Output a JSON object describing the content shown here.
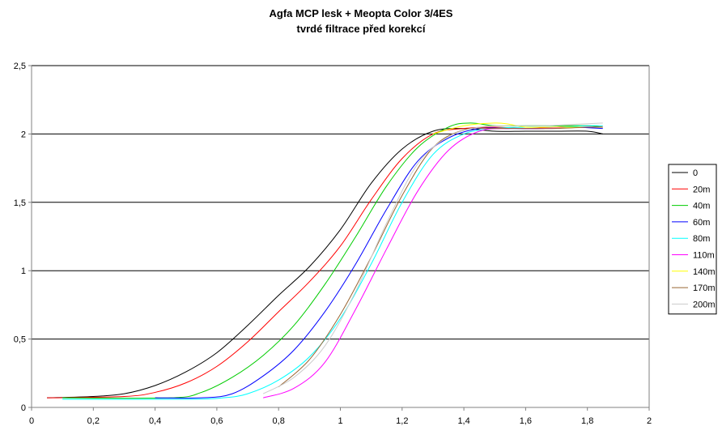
{
  "chart_data": {
    "type": "line",
    "title": [
      "Agfa MCP lesk + Meopta Color 3/4ES",
      "tvrdé filtrace před korekcí"
    ],
    "xlabel": "",
    "ylabel": "",
    "xlim": [
      0,
      2
    ],
    "ylim": [
      0,
      2.5
    ],
    "x_ticks": [
      0,
      0.2,
      0.4,
      0.6,
      0.8,
      1,
      1.2,
      1.4,
      1.6,
      1.8,
      2
    ],
    "x_tick_labels": [
      "0",
      "0,2",
      "0,4",
      "0,6",
      "0,8",
      "1",
      "1,2",
      "1,4",
      "1,6",
      "1,8",
      "2"
    ],
    "y_ticks": [
      0,
      0.5,
      1,
      1.5,
      2,
      2.5
    ],
    "y_tick_labels": [
      "0",
      "0,5",
      "1",
      "1,5",
      "2",
      "2,5"
    ],
    "grid": "horizontal major gridlines",
    "legend_position": "right",
    "series": [
      {
        "name": "0",
        "color": "#000000",
        "points": [
          [
            0.05,
            0.07
          ],
          [
            0.2,
            0.08
          ],
          [
            0.3,
            0.1
          ],
          [
            0.4,
            0.16
          ],
          [
            0.5,
            0.26
          ],
          [
            0.6,
            0.4
          ],
          [
            0.7,
            0.6
          ],
          [
            0.8,
            0.82
          ],
          [
            0.9,
            1.03
          ],
          [
            1.0,
            1.3
          ],
          [
            1.1,
            1.64
          ],
          [
            1.2,
            1.89
          ],
          [
            1.3,
            2.02
          ],
          [
            1.4,
            2.04
          ],
          [
            1.5,
            2.02
          ],
          [
            1.6,
            2.02
          ],
          [
            1.7,
            2.02
          ],
          [
            1.8,
            2.02
          ],
          [
            1.85,
            2.0
          ]
        ]
      },
      {
        "name": "20m",
        "color": "#ff0000",
        "points": [
          [
            0.05,
            0.07
          ],
          [
            0.3,
            0.08
          ],
          [
            0.4,
            0.11
          ],
          [
            0.5,
            0.18
          ],
          [
            0.6,
            0.3
          ],
          [
            0.7,
            0.48
          ],
          [
            0.8,
            0.7
          ],
          [
            0.9,
            0.92
          ],
          [
            1.0,
            1.18
          ],
          [
            1.1,
            1.52
          ],
          [
            1.2,
            1.82
          ],
          [
            1.3,
            2.0
          ],
          [
            1.4,
            2.04
          ],
          [
            1.5,
            2.05
          ],
          [
            1.6,
            2.04
          ],
          [
            1.7,
            2.05
          ],
          [
            1.8,
            2.06
          ],
          [
            1.85,
            2.05
          ]
        ]
      },
      {
        "name": "40m",
        "color": "#00cc00",
        "points": [
          [
            0.1,
            0.07
          ],
          [
            0.45,
            0.07
          ],
          [
            0.55,
            0.11
          ],
          [
            0.65,
            0.22
          ],
          [
            0.75,
            0.38
          ],
          [
            0.85,
            0.6
          ],
          [
            0.95,
            0.9
          ],
          [
            1.05,
            1.25
          ],
          [
            1.15,
            1.62
          ],
          [
            1.25,
            1.9
          ],
          [
            1.35,
            2.05
          ],
          [
            1.42,
            2.08
          ],
          [
            1.5,
            2.06
          ],
          [
            1.6,
            2.06
          ],
          [
            1.7,
            2.06
          ],
          [
            1.8,
            2.06
          ],
          [
            1.85,
            2.05
          ]
        ]
      },
      {
        "name": "60m",
        "color": "#0000ff",
        "points": [
          [
            0.4,
            0.07
          ],
          [
            0.55,
            0.07
          ],
          [
            0.65,
            0.1
          ],
          [
            0.75,
            0.23
          ],
          [
            0.85,
            0.42
          ],
          [
            0.95,
            0.7
          ],
          [
            1.05,
            1.05
          ],
          [
            1.15,
            1.45
          ],
          [
            1.25,
            1.8
          ],
          [
            1.35,
            1.97
          ],
          [
            1.45,
            2.04
          ],
          [
            1.55,
            2.04
          ],
          [
            1.65,
            2.04
          ],
          [
            1.75,
            2.05
          ],
          [
            1.85,
            2.04
          ]
        ]
      },
      {
        "name": "80m",
        "color": "#00ffff",
        "points": [
          [
            0.1,
            0.06
          ],
          [
            0.5,
            0.06
          ],
          [
            0.62,
            0.07
          ],
          [
            0.7,
            0.1
          ],
          [
            0.8,
            0.2
          ],
          [
            0.9,
            0.37
          ],
          [
            1.0,
            0.65
          ],
          [
            1.1,
            1.05
          ],
          [
            1.2,
            1.5
          ],
          [
            1.3,
            1.85
          ],
          [
            1.4,
            2.0
          ],
          [
            1.5,
            2.04
          ],
          [
            1.6,
            2.05
          ],
          [
            1.7,
            2.05
          ],
          [
            1.8,
            2.06
          ],
          [
            1.85,
            2.06
          ]
        ]
      },
      {
        "name": "110m",
        "color": "#ff00ff",
        "points": [
          [
            0.75,
            0.07
          ],
          [
            0.85,
            0.14
          ],
          [
            0.95,
            0.33
          ],
          [
            1.05,
            0.72
          ],
          [
            1.15,
            1.16
          ],
          [
            1.25,
            1.58
          ],
          [
            1.35,
            1.88
          ],
          [
            1.45,
            2.02
          ],
          [
            1.55,
            2.04
          ],
          [
            1.65,
            2.04
          ],
          [
            1.75,
            2.05
          ],
          [
            1.85,
            2.05
          ]
        ]
      },
      {
        "name": "140m",
        "color": "#ffff00",
        "points": [
          [
            1.3,
            2.0
          ],
          [
            1.4,
            2.06
          ],
          [
            1.5,
            2.08
          ],
          [
            1.55,
            2.07
          ],
          [
            1.6,
            2.05
          ],
          [
            1.7,
            2.05
          ],
          [
            1.8,
            2.05
          ],
          [
            1.85,
            2.05
          ]
        ]
      },
      {
        "name": "170m",
        "color": "#996633",
        "points": [
          [
            0.8,
            0.15
          ],
          [
            0.9,
            0.35
          ],
          [
            1.0,
            0.68
          ],
          [
            1.1,
            1.1
          ],
          [
            1.2,
            1.55
          ],
          [
            1.3,
            1.9
          ],
          [
            1.4,
            2.03
          ],
          [
            1.5,
            2.04
          ],
          [
            1.6,
            2.04
          ],
          [
            1.7,
            2.04
          ],
          [
            1.8,
            2.05
          ],
          [
            1.85,
            2.05
          ]
        ]
      },
      {
        "name": "200m",
        "color": "#cccccc",
        "points": [
          [
            0.75,
            0.1
          ],
          [
            0.85,
            0.22
          ],
          [
            0.95,
            0.45
          ],
          [
            1.05,
            0.85
          ],
          [
            1.15,
            1.35
          ],
          [
            1.25,
            1.78
          ],
          [
            1.35,
            1.98
          ],
          [
            1.45,
            2.05
          ],
          [
            1.55,
            2.06
          ],
          [
            1.65,
            2.06
          ],
          [
            1.75,
            2.07
          ],
          [
            1.85,
            2.08
          ]
        ]
      }
    ]
  }
}
